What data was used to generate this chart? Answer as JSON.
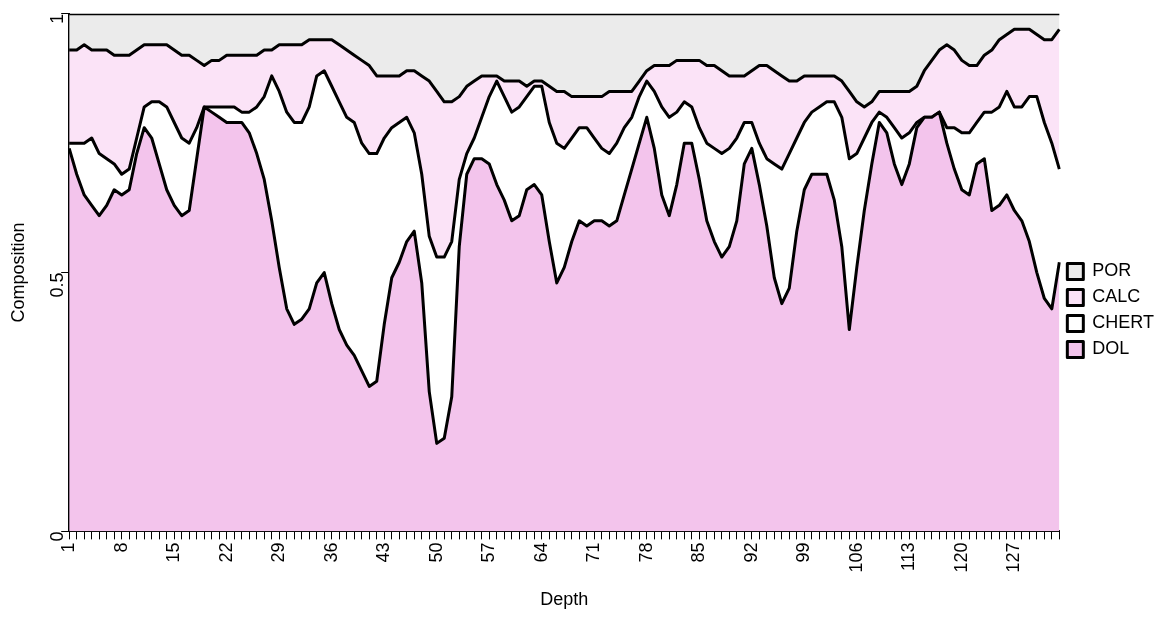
{
  "chart_data": {
    "type": "area",
    "stacked": true,
    "xlabel": "Depth",
    "ylabel": "Composition",
    "categories": [
      "1",
      null,
      null,
      null,
      null,
      null,
      null,
      "8",
      null,
      null,
      null,
      null,
      null,
      null,
      "15",
      null,
      null,
      null,
      null,
      null,
      null,
      "22",
      null,
      null,
      null,
      null,
      null,
      null,
      "29",
      null,
      null,
      null,
      null,
      null,
      null,
      "36",
      null,
      null,
      null,
      null,
      null,
      null,
      "43",
      null,
      null,
      null,
      null,
      null,
      null,
      "50",
      null,
      null,
      null,
      null,
      null,
      null,
      "57",
      null,
      null,
      null,
      null,
      null,
      null,
      "64",
      null,
      null,
      null,
      null,
      null,
      null,
      "71",
      null,
      null,
      null,
      null,
      null,
      null,
      "78",
      null,
      null,
      null,
      null,
      null,
      null,
      "85",
      null,
      null,
      null,
      null,
      null,
      null,
      "92",
      null,
      null,
      null,
      null,
      null,
      null,
      "99",
      null,
      null,
      null,
      null,
      null,
      null,
      "106",
      null,
      null,
      null,
      null,
      null,
      null,
      "113",
      null,
      null,
      null,
      null,
      null,
      null,
      "120",
      null,
      null,
      null,
      null,
      null,
      null,
      "127",
      null,
      null,
      null,
      null,
      null,
      null
    ],
    "series": [
      {
        "name": "DOL",
        "color": "#f3c4ec",
        "values": [
          0.74,
          0.69,
          0.65,
          0.63,
          0.61,
          0.63,
          0.66,
          0.65,
          0.66,
          0.73,
          0.78,
          0.76,
          0.71,
          0.66,
          0.63,
          0.61,
          0.62,
          0.72,
          0.82,
          0.81,
          0.8,
          0.79,
          0.79,
          0.79,
          0.77,
          0.73,
          0.68,
          0.6,
          0.51,
          0.43,
          0.4,
          0.41,
          0.43,
          0.48,
          0.5,
          0.44,
          0.39,
          0.36,
          0.34,
          0.31,
          0.28,
          0.29,
          0.4,
          0.49,
          0.52,
          0.56,
          0.58,
          0.48,
          0.27,
          0.17,
          0.18,
          0.26,
          0.55,
          0.69,
          0.72,
          0.72,
          0.71,
          0.67,
          0.64,
          0.6,
          0.61,
          0.66,
          0.67,
          0.65,
          0.56,
          0.48,
          0.51,
          0.56,
          0.6,
          0.59,
          0.6,
          0.6,
          0.59,
          0.6,
          0.65,
          0.7,
          0.75,
          0.8,
          0.74,
          0.65,
          0.61,
          0.67,
          0.75,
          0.75,
          0.68,
          0.6,
          0.56,
          0.53,
          0.55,
          0.6,
          0.71,
          0.74,
          0.67,
          0.59,
          0.49,
          0.44,
          0.47,
          0.58,
          0.66,
          0.69,
          0.69,
          0.69,
          0.64,
          0.55,
          0.39,
          0.51,
          0.62,
          0.71,
          0.79,
          0.77,
          0.71,
          0.67,
          0.71,
          0.78,
          0.8,
          0.8,
          0.81,
          0.75,
          0.7,
          0.66,
          0.65,
          0.71,
          0.72,
          0.62,
          0.63,
          0.65,
          0.62,
          0.6,
          0.56,
          0.5,
          0.45,
          0.43,
          0.52
        ]
      },
      {
        "name": "CHERT",
        "color": "#ffffff",
        "values": [
          0.01,
          0.06,
          0.1,
          0.13,
          0.12,
          0.09,
          0.05,
          0.04,
          0.04,
          0.03,
          0.04,
          0.07,
          0.12,
          0.16,
          0.16,
          0.15,
          0.13,
          0.06,
          0,
          0.01,
          0.02,
          0.03,
          0.03,
          0.02,
          0.04,
          0.09,
          0.16,
          0.28,
          0.34,
          0.38,
          0.39,
          0.38,
          0.39,
          0.4,
          0.39,
          0.42,
          0.44,
          0.44,
          0.45,
          0.44,
          0.45,
          0.44,
          0.36,
          0.29,
          0.27,
          0.24,
          0.19,
          0.21,
          0.3,
          0.36,
          0.35,
          0.3,
          0.13,
          0.04,
          0.04,
          0.08,
          0.13,
          0.2,
          0.2,
          0.21,
          0.21,
          0.18,
          0.19,
          0.21,
          0.23,
          0.27,
          0.23,
          0.2,
          0.18,
          0.19,
          0.16,
          0.14,
          0.14,
          0.15,
          0.13,
          0.1,
          0.09,
          0.07,
          0.11,
          0.17,
          0.19,
          0.14,
          0.08,
          0.07,
          0.1,
          0.15,
          0.18,
          0.2,
          0.19,
          0.16,
          0.08,
          0.05,
          0.08,
          0.13,
          0.22,
          0.26,
          0.26,
          0.18,
          0.13,
          0.12,
          0.13,
          0.14,
          0.19,
          0.25,
          0.33,
          0.22,
          0.14,
          0.08,
          0.02,
          0.03,
          0.07,
          0.09,
          0.06,
          0.01,
          0,
          0,
          0,
          0.03,
          0.08,
          0.11,
          0.12,
          0.08,
          0.09,
          0.19,
          0.19,
          0.2,
          0.2,
          0.22,
          0.28,
          0.34,
          0.34,
          0.32,
          0.18
        ]
      },
      {
        "name": "CALC",
        "color": "#fbe3f7",
        "values": [
          0.18,
          0.18,
          0.19,
          0.17,
          0.2,
          0.21,
          0.21,
          0.23,
          0.22,
          0.17,
          0.12,
          0.11,
          0.11,
          0.12,
          0.14,
          0.16,
          0.17,
          0.13,
          0.08,
          0.09,
          0.09,
          0.1,
          0.1,
          0.11,
          0.11,
          0.1,
          0.09,
          0.05,
          0.09,
          0.13,
          0.15,
          0.15,
          0.13,
          0.07,
          0.06,
          0.09,
          0.11,
          0.13,
          0.13,
          0.16,
          0.17,
          0.15,
          0.12,
          0.1,
          0.09,
          0.09,
          0.12,
          0.19,
          0.3,
          0.32,
          0.3,
          0.27,
          0.16,
          0.13,
          0.11,
          0.08,
          0.04,
          0.01,
          0.03,
          0.06,
          0.05,
          0.02,
          0.01,
          0.01,
          0.07,
          0.1,
          0.11,
          0.08,
          0.06,
          0.06,
          0.08,
          0.1,
          0.12,
          0.1,
          0.07,
          0.05,
          0.03,
          0.02,
          0.05,
          0.08,
          0.1,
          0.1,
          0.08,
          0.09,
          0.13,
          0.15,
          0.16,
          0.16,
          0.14,
          0.12,
          0.09,
          0.1,
          0.15,
          0.18,
          0.18,
          0.18,
          0.14,
          0.11,
          0.09,
          0.07,
          0.06,
          0.05,
          0.05,
          0.07,
          0.13,
          0.1,
          0.06,
          0.04,
          0.04,
          0.05,
          0.07,
          0.09,
          0.08,
          0.07,
          0.09,
          0.11,
          0.12,
          0.16,
          0.15,
          0.14,
          0.13,
          0.11,
          0.11,
          0.12,
          0.13,
          0.11,
          0.15,
          0.15,
          0.13,
          0.12,
          0.16,
          0.2,
          0.27
        ]
      },
      {
        "name": "POR",
        "color": "#ebebeb",
        "values": [
          0.07,
          0.07,
          0.06,
          0.07,
          0.07,
          0.07,
          0.08,
          0.08,
          0.08,
          0.07,
          0.06,
          0.06,
          0.06,
          0.06,
          0.07,
          0.08,
          0.08,
          0.09,
          0.1,
          0.09,
          0.09,
          0.08,
          0.08,
          0.08,
          0.08,
          0.08,
          0.07,
          0.07,
          0.06,
          0.06,
          0.06,
          0.06,
          0.05,
          0.05,
          0.05,
          0.05,
          0.06,
          0.07,
          0.08,
          0.09,
          0.1,
          0.12,
          0.12,
          0.12,
          0.12,
          0.11,
          0.11,
          0.12,
          0.13,
          0.15,
          0.17,
          0.17,
          0.16,
          0.14,
          0.13,
          0.12,
          0.12,
          0.12,
          0.13,
          0.13,
          0.13,
          0.14,
          0.13,
          0.13,
          0.14,
          0.15,
          0.15,
          0.16,
          0.16,
          0.16,
          0.16,
          0.16,
          0.15,
          0.15,
          0.15,
          0.15,
          0.13,
          0.11,
          0.1,
          0.1,
          0.1,
          0.09,
          0.09,
          0.09,
          0.09,
          0.1,
          0.1,
          0.11,
          0.12,
          0.12,
          0.12,
          0.11,
          0.1,
          0.1,
          0.11,
          0.12,
          0.13,
          0.13,
          0.12,
          0.12,
          0.12,
          0.12,
          0.12,
          0.13,
          0.15,
          0.17,
          0.18,
          0.17,
          0.15,
          0.15,
          0.15,
          0.15,
          0.15,
          0.14,
          0.11,
          0.09,
          0.07,
          0.06,
          0.07,
          0.09,
          0.1,
          0.1,
          0.08,
          0.07,
          0.05,
          0.04,
          0.03,
          0.03,
          0.03,
          0.04,
          0.05,
          0.05,
          0.03
        ]
      }
    ],
    "ylim": [
      0,
      1
    ],
    "yticks": [
      0,
      0.5,
      1
    ],
    "grid": false,
    "legend": "right",
    "marker": "none"
  }
}
